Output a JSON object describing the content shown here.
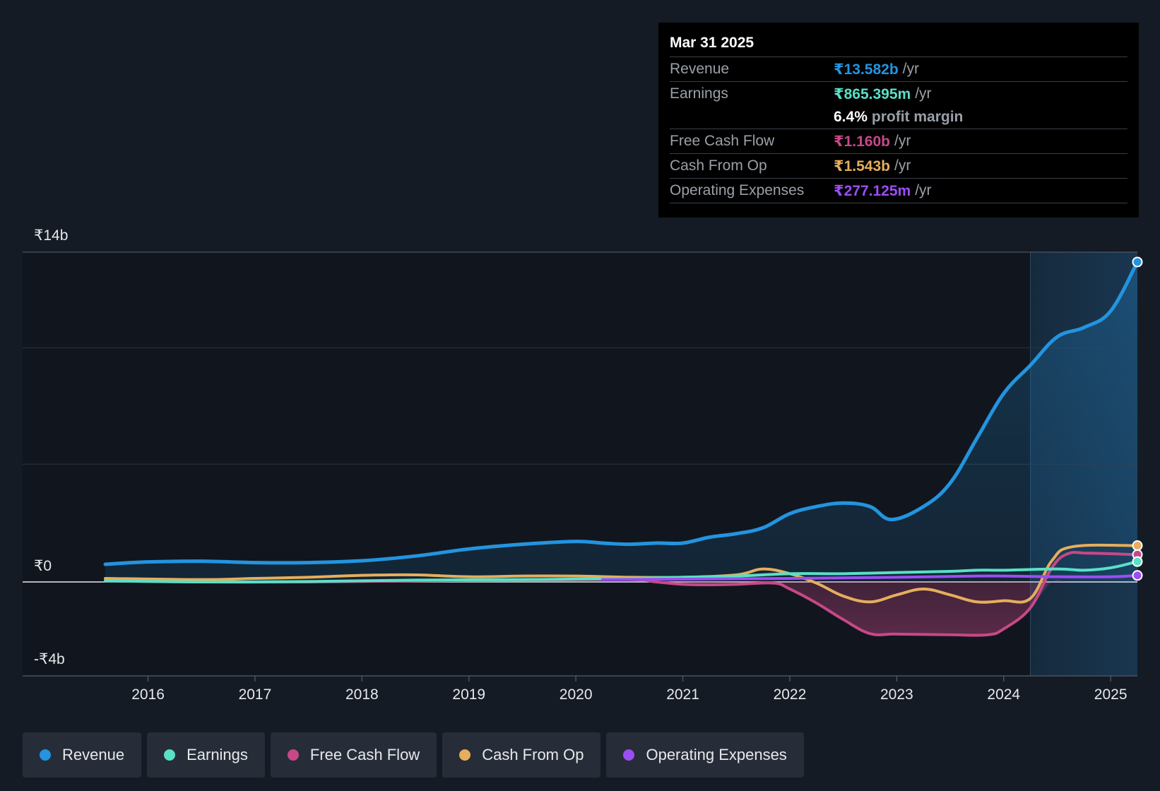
{
  "colors": {
    "revenue": "#2394df",
    "earnings": "#59e0c7",
    "fcf": "#c74887",
    "cfo": "#e6ae5c",
    "opex": "#9b4ef2",
    "background": "#151b24",
    "tooltip_bg": "#000000"
  },
  "tooltip": {
    "date": "Mar 31 2025",
    "rows": [
      {
        "label": "Revenue",
        "value": "₹13.582b",
        "unit": "/yr"
      },
      {
        "label": "Earnings",
        "value": "₹865.395m",
        "unit": "/yr"
      },
      {
        "label": "",
        "value": "6.4%",
        "unit": "profit margin"
      },
      {
        "label": "Free Cash Flow",
        "value": "₹1.160b",
        "unit": "/yr"
      },
      {
        "label": "Cash From Op",
        "value": "₹1.543b",
        "unit": "/yr"
      },
      {
        "label": "Operating Expenses",
        "value": "₹277.125m",
        "unit": "/yr"
      }
    ]
  },
  "legend": [
    {
      "label": "Revenue"
    },
    {
      "label": "Earnings"
    },
    {
      "label": "Free Cash Flow"
    },
    {
      "label": "Cash From Op"
    },
    {
      "label": "Operating Expenses"
    }
  ],
  "chart_data": {
    "type": "line",
    "title": "",
    "xlabel": "",
    "ylabel": "",
    "ylim": [
      -4,
      14
    ],
    "y_tick_labels": [
      {
        "value": 14,
        "label": "₹14b"
      },
      {
        "value": 0,
        "label": "₹0"
      },
      {
        "value": -4,
        "label": "-₹4b"
      }
    ],
    "x_tick_labels": [
      {
        "value": 2016,
        "label": "2016"
      },
      {
        "value": 2017,
        "label": "2017"
      },
      {
        "value": 2018,
        "label": "2018"
      },
      {
        "value": 2019,
        "label": "2019"
      },
      {
        "value": 2020,
        "label": "2020"
      },
      {
        "value": 2021,
        "label": "2021"
      },
      {
        "value": 2022,
        "label": "2022"
      },
      {
        "value": 2023,
        "label": "2023"
      },
      {
        "value": 2024,
        "label": "2024"
      },
      {
        "value": 2025,
        "label": "2025"
      }
    ],
    "xlim": [
      2015.25,
      2025.25
    ],
    "highlight_start": 2024.25,
    "series": [
      {
        "name": "Revenue",
        "key": "revenue",
        "color": "#2394df",
        "points": [
          [
            2015.6,
            0.75
          ],
          [
            2016.0,
            0.85
          ],
          [
            2016.5,
            0.88
          ],
          [
            2017.0,
            0.82
          ],
          [
            2017.5,
            0.82
          ],
          [
            2018.0,
            0.9
          ],
          [
            2018.5,
            1.1
          ],
          [
            2019.0,
            1.4
          ],
          [
            2019.5,
            1.6
          ],
          [
            2020.0,
            1.72
          ],
          [
            2020.25,
            1.65
          ],
          [
            2020.5,
            1.6
          ],
          [
            2020.75,
            1.65
          ],
          [
            2021.0,
            1.65
          ],
          [
            2021.25,
            1.9
          ],
          [
            2021.5,
            2.05
          ],
          [
            2021.75,
            2.3
          ],
          [
            2022.0,
            2.9
          ],
          [
            2022.25,
            3.2
          ],
          [
            2022.5,
            3.35
          ],
          [
            2022.75,
            3.2
          ],
          [
            2022.95,
            2.65
          ],
          [
            2023.25,
            3.2
          ],
          [
            2023.5,
            4.2
          ],
          [
            2023.75,
            6.1
          ],
          [
            2024.0,
            8.0
          ],
          [
            2024.25,
            9.2
          ],
          [
            2024.5,
            10.4
          ],
          [
            2024.75,
            10.8
          ],
          [
            2025.0,
            11.5
          ],
          [
            2025.25,
            13.582
          ]
        ]
      },
      {
        "name": "Earnings",
        "key": "earnings",
        "color": "#59e0c7",
        "points": [
          [
            2015.6,
            0.05
          ],
          [
            2016.5,
            0.0
          ],
          [
            2017.5,
            0.02
          ],
          [
            2018.5,
            0.08
          ],
          [
            2019.5,
            0.1
          ],
          [
            2020.5,
            0.15
          ],
          [
            2021.0,
            0.2
          ],
          [
            2021.5,
            0.25
          ],
          [
            2022.0,
            0.35
          ],
          [
            2022.5,
            0.35
          ],
          [
            2023.0,
            0.4
          ],
          [
            2023.5,
            0.45
          ],
          [
            2023.75,
            0.5
          ],
          [
            2024.0,
            0.5
          ],
          [
            2024.5,
            0.55
          ],
          [
            2024.75,
            0.5
          ],
          [
            2025.0,
            0.6
          ],
          [
            2025.25,
            0.865
          ]
        ]
      },
      {
        "name": "Free Cash Flow",
        "key": "fcf",
        "color": "#c74887",
        "points": [
          [
            2015.6,
            0.05
          ],
          [
            2016.5,
            0.0
          ],
          [
            2017.5,
            0.0
          ],
          [
            2018.5,
            0.05
          ],
          [
            2019.5,
            0.08
          ],
          [
            2020.5,
            0.1
          ],
          [
            2020.75,
            0.0
          ],
          [
            2021.0,
            -0.1
          ],
          [
            2021.25,
            -0.12
          ],
          [
            2021.5,
            -0.1
          ],
          [
            2021.85,
            -0.05
          ],
          [
            2022.0,
            -0.3
          ],
          [
            2022.25,
            -0.9
          ],
          [
            2022.5,
            -1.6
          ],
          [
            2022.75,
            -2.2
          ],
          [
            2023.0,
            -2.22
          ],
          [
            2023.5,
            -2.25
          ],
          [
            2023.85,
            -2.25
          ],
          [
            2024.0,
            -2.0
          ],
          [
            2024.25,
            -1.1
          ],
          [
            2024.45,
            0.6
          ],
          [
            2024.6,
            1.2
          ],
          [
            2024.8,
            1.22
          ],
          [
            2025.25,
            1.16
          ]
        ]
      },
      {
        "name": "Cash From Op",
        "key": "cfo",
        "color": "#e6ae5c",
        "points": [
          [
            2015.6,
            0.15
          ],
          [
            2016.5,
            0.1
          ],
          [
            2017.0,
            0.15
          ],
          [
            2017.5,
            0.2
          ],
          [
            2018.0,
            0.28
          ],
          [
            2018.5,
            0.3
          ],
          [
            2019.0,
            0.22
          ],
          [
            2019.5,
            0.25
          ],
          [
            2020.0,
            0.25
          ],
          [
            2020.5,
            0.2
          ],
          [
            2021.0,
            0.2
          ],
          [
            2021.5,
            0.3
          ],
          [
            2021.75,
            0.55
          ],
          [
            2022.0,
            0.35
          ],
          [
            2022.25,
            -0.05
          ],
          [
            2022.5,
            -0.6
          ],
          [
            2022.75,
            -0.85
          ],
          [
            2023.0,
            -0.55
          ],
          [
            2023.25,
            -0.3
          ],
          [
            2023.5,
            -0.55
          ],
          [
            2023.75,
            -0.85
          ],
          [
            2024.0,
            -0.8
          ],
          [
            2024.25,
            -0.7
          ],
          [
            2024.45,
            0.9
          ],
          [
            2024.65,
            1.5
          ],
          [
            2025.25,
            1.543
          ]
        ]
      },
      {
        "name": "Operating Expenses",
        "key": "opex",
        "color": "#9b4ef2",
        "points": [
          [
            2020.25,
            0.1
          ],
          [
            2021.0,
            0.12
          ],
          [
            2022.0,
            0.15
          ],
          [
            2023.0,
            0.2
          ],
          [
            2023.75,
            0.25
          ],
          [
            2024.0,
            0.25
          ],
          [
            2024.5,
            0.22
          ],
          [
            2025.0,
            0.22
          ],
          [
            2025.25,
            0.277
          ]
        ]
      }
    ]
  }
}
